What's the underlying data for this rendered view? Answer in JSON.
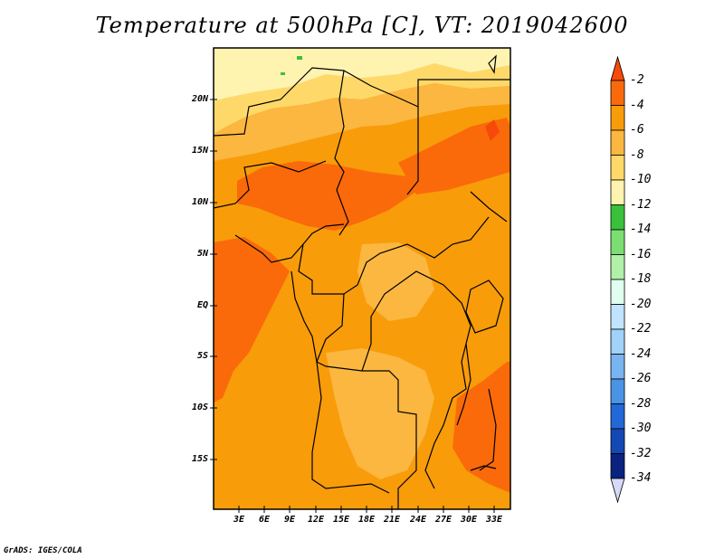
{
  "title": "Temperature at 500hPa [C], VT: 2019042600",
  "map": {
    "lat_labels": [
      "20N",
      "15N",
      "10N",
      "5N",
      "EQ",
      "5S",
      "10S",
      "15S"
    ],
    "lon_labels": [
      "3E",
      "6E",
      "9E",
      "12E",
      "15E",
      "18E",
      "21E",
      "24E",
      "27E",
      "30E",
      "33E"
    ]
  },
  "colorbar": {
    "labels": [
      "-2",
      "-4",
      "-6",
      "-8",
      "-10",
      "-12",
      "-14",
      "-16",
      "-18",
      "-20",
      "-22",
      "-24",
      "-26",
      "-28",
      "-30",
      "-32",
      "-34"
    ],
    "colors": [
      "#f64a0a",
      "#fa6a0a",
      "#f89c0a",
      "#fbb740",
      "#fed96a",
      "#fff3b0",
      "#3bc03b",
      "#7bde72",
      "#b0f0a8",
      "#e0fff0",
      "#c0e4ff",
      "#a0d2fa",
      "#78b4f0",
      "#4a94e6",
      "#2268d6",
      "#1448b4",
      "#0a2280",
      "#d8d8f8"
    ]
  },
  "credit": "GrADS: IGES/COLA"
}
